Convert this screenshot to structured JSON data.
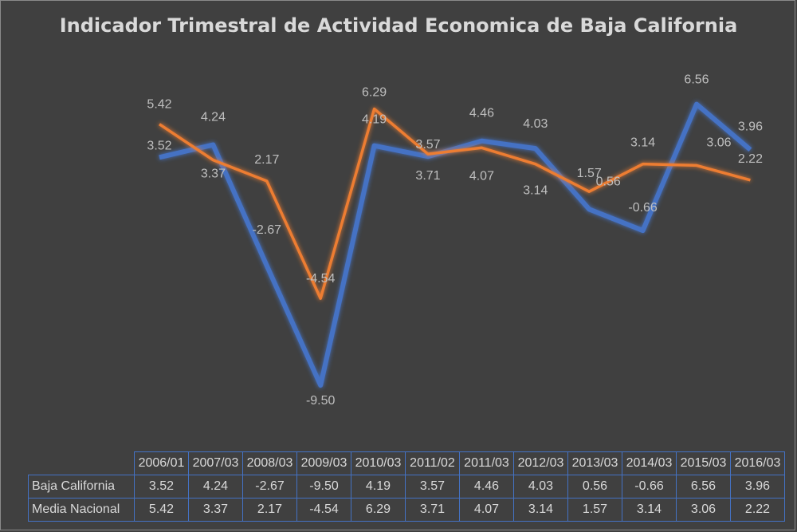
{
  "chart_data": {
    "type": "line",
    "title": "Indicador Trimestral de Actividad Economica de Baja California",
    "categories": [
      "2006/01",
      "2007/03",
      "2008/03",
      "2009/03",
      "2010/03",
      "2011/02",
      "2011/03",
      "2012/03",
      "2013/03",
      "2014/03",
      "2015/03",
      "2016/03"
    ],
    "series": [
      {
        "name": "Baja California",
        "color": "#4472c4",
        "values": [
          3.52,
          4.24,
          -2.67,
          -9.5,
          4.19,
          3.57,
          4.46,
          4.03,
          0.56,
          -0.66,
          6.56,
          3.96
        ],
        "labels": [
          "3.52",
          "4.24",
          "-2.67",
          "-9.50",
          "4.19",
          "3.57",
          "4.46",
          "4.03",
          "0.56",
          "-0.66",
          "6.56",
          "3.96"
        ]
      },
      {
        "name": "Media Nacional",
        "color": "#ed7d31",
        "values": [
          5.42,
          3.37,
          2.17,
          -4.54,
          6.29,
          3.71,
          4.07,
          3.14,
          1.57,
          3.14,
          3.06,
          2.22
        ],
        "labels": [
          "5.42",
          "3.37",
          "2.17",
          "-4.54",
          "6.29",
          "3.71",
          "4.07",
          "3.14",
          "1.57",
          "3.14",
          "3.06",
          "2.22"
        ]
      }
    ],
    "ylim": [
      -10.5,
      7.5
    ],
    "grid": false,
    "legend": "data table below chart",
    "background": "#404040"
  }
}
